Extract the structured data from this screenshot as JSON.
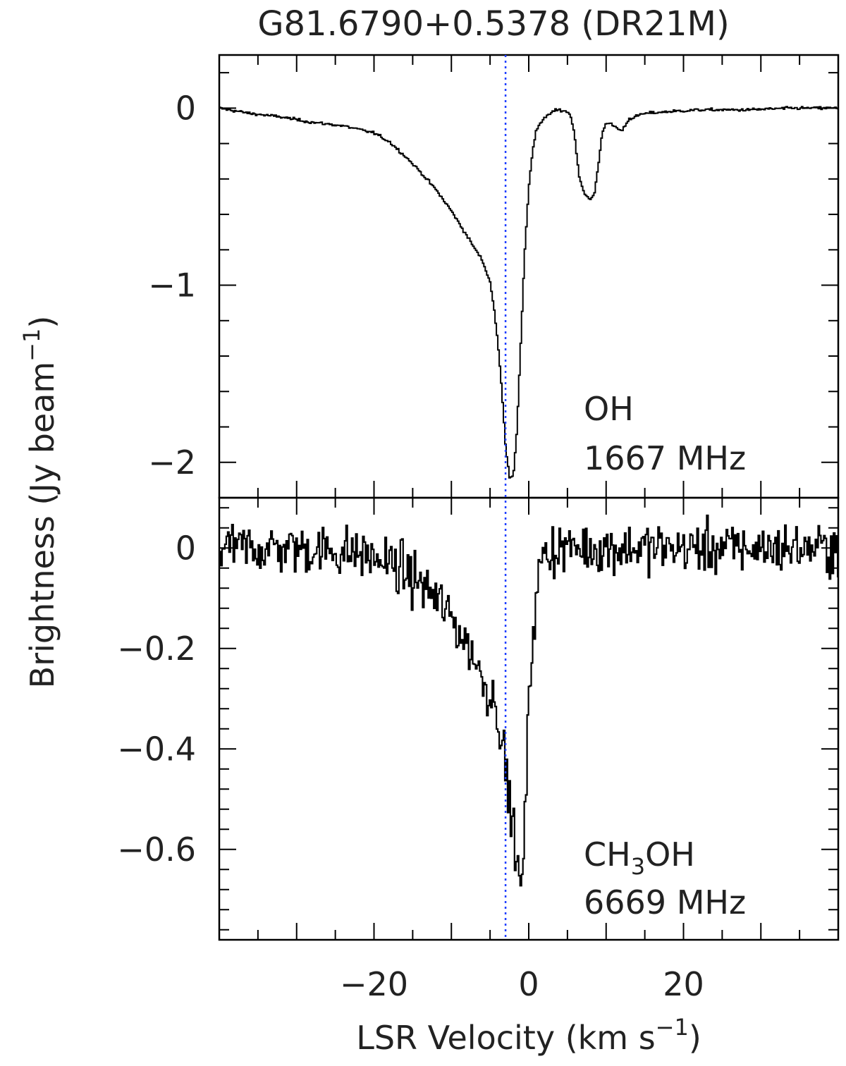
{
  "chart_data": {
    "type": "line",
    "title": "G81.6790+0.5378 (DR21M)",
    "xlabel": "LSR Velocity (km s",
    "xlabel_exp": "−1",
    "xlabel_close": ")",
    "ylabel": "Brightness (Jy beam",
    "ylabel_exp": "−1",
    "ylabel_close": ")",
    "reference_line": {
      "velocity": -3.0,
      "color": "#1f3fff"
    },
    "xlim": [
      -40,
      40
    ],
    "x_ticks": [
      -20,
      0,
      20
    ],
    "x_tick_labels": [
      "−20",
      "0",
      "20"
    ],
    "panels": [
      {
        "label_line1": "OH",
        "label_line2": "1667 MHz",
        "ylim": [
          -2.2,
          0.3
        ],
        "y_ticks": [
          0,
          -1,
          -2
        ],
        "y_tick_labels": [
          "0",
          "−1",
          "−2"
        ],
        "series": {
          "x": [
            -40,
            -36,
            -32,
            -28,
            -24,
            -20,
            -18,
            -16,
            -14,
            -12,
            -10,
            -8,
            -6,
            -5,
            -4.5,
            -4,
            -3.5,
            -3,
            -2.5,
            -2,
            -1.5,
            -1,
            -0.5,
            0,
            0.5,
            1,
            2,
            3,
            4,
            5,
            5.5,
            6,
            6.5,
            7,
            7.5,
            8,
            8.5,
            9,
            9.5,
            10,
            11,
            12,
            13,
            15,
            18,
            22,
            28,
            34,
            40
          ],
          "y": [
            0.0,
            -0.03,
            -0.05,
            -0.08,
            -0.1,
            -0.14,
            -0.19,
            -0.27,
            -0.36,
            -0.46,
            -0.58,
            -0.72,
            -0.86,
            -0.98,
            -1.12,
            -1.32,
            -1.58,
            -1.9,
            -2.08,
            -2.08,
            -1.8,
            -1.3,
            -0.8,
            -0.45,
            -0.24,
            -0.12,
            -0.06,
            -0.02,
            -0.01,
            -0.02,
            -0.05,
            -0.18,
            -0.38,
            -0.46,
            -0.5,
            -0.52,
            -0.48,
            -0.32,
            -0.14,
            -0.08,
            -0.1,
            -0.13,
            -0.06,
            -0.03,
            -0.02,
            -0.01,
            -0.01,
            0.0,
            0.0
          ]
        }
      },
      {
        "label_line1": "CH3OH",
        "label_line1_main": "CH",
        "label_line1_sub": "3",
        "label_line1_rest": "OH",
        "label_line2": "6669 MHz",
        "ylim": [
          -0.78,
          0.1
        ],
        "y_ticks": [
          0,
          -0.2,
          -0.4,
          -0.6
        ],
        "y_tick_labels": [
          "0",
          "−0.2",
          "−0.4",
          "−0.6"
        ],
        "series": {
          "x": [
            -40,
            -30,
            -22,
            -20,
            -18,
            -16,
            -14,
            -12,
            -10,
            -8,
            -7,
            -6,
            -5,
            -4.5,
            -4,
            -3.5,
            -3,
            -2.5,
            -2,
            -1.5,
            -1,
            -0.5,
            0,
            0.5,
            1,
            1.5,
            2,
            4,
            10,
            20,
            30,
            40
          ],
          "y": [
            0.0,
            0.0,
            -0.01,
            -0.02,
            -0.03,
            -0.05,
            -0.07,
            -0.1,
            -0.14,
            -0.19,
            -0.22,
            -0.26,
            -0.29,
            -0.3,
            -0.32,
            -0.38,
            -0.44,
            -0.5,
            -0.56,
            -0.62,
            -0.7,
            -0.55,
            -0.32,
            -0.17,
            -0.09,
            -0.04,
            -0.01,
            0.0,
            0.0,
            0.0,
            0.0,
            0.0
          ],
          "noise_rms": 0.025
        }
      }
    ],
    "grid": false,
    "legend": "none"
  }
}
